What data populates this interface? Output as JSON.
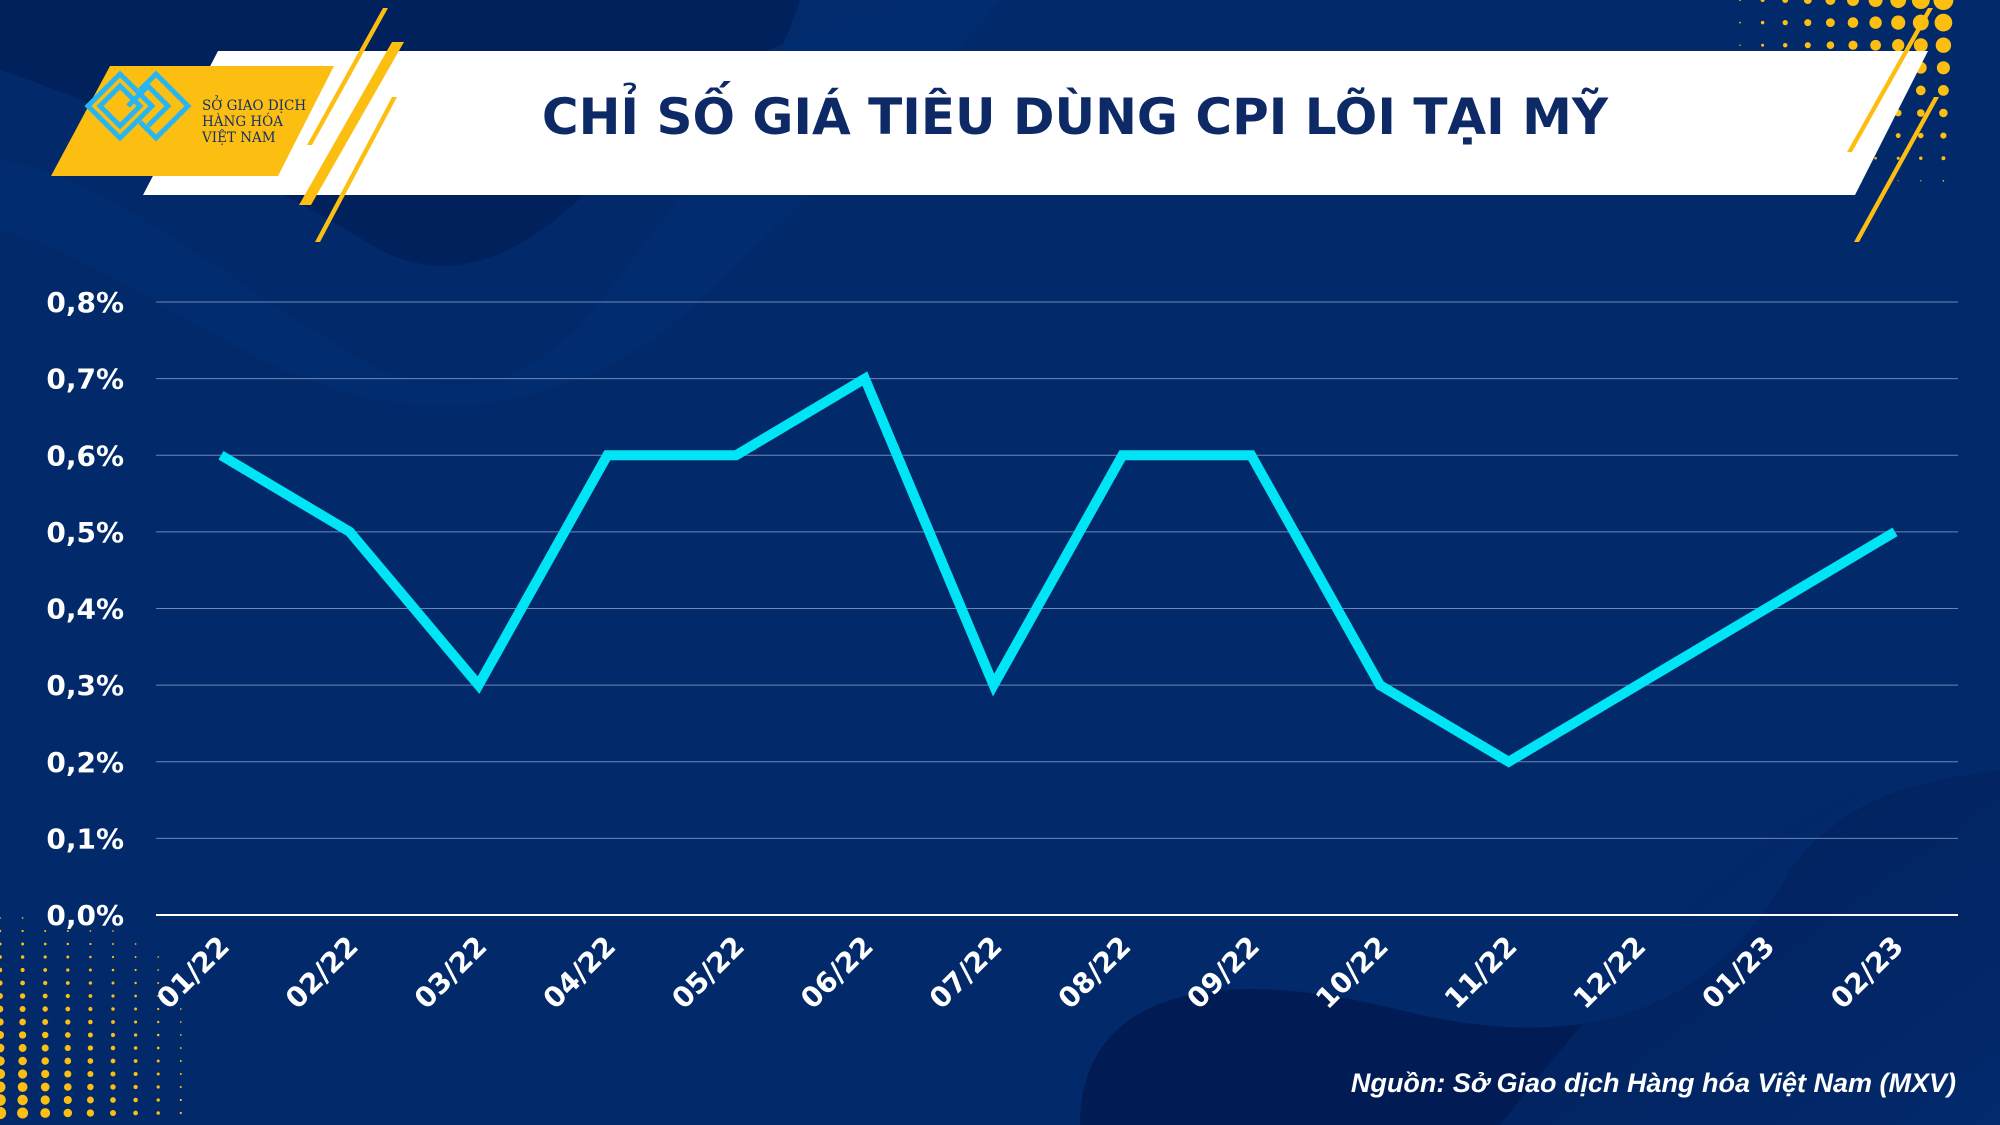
{
  "header": {
    "title": "CHỈ SỐ GIÁ TIÊU DÙNG CPI LÕI TẠI MỸ",
    "logo_text": [
      "SỞ GIAO DỊCH",
      "HÀNG HÓA",
      "VIỆT NAM"
    ]
  },
  "footer": {
    "source": "Nguồn: Sở Giao dịch Hàng hóa Việt Nam (MXV)"
  },
  "colors": {
    "background": "#022a6b",
    "line": "#00e5f5",
    "accent": "#fdbe12",
    "banner": "#ffffff",
    "title": "#0d2a66"
  },
  "chart_data": {
    "type": "line",
    "title": "CHỈ SỐ GIÁ TIÊU DÙNG CPI LÕI TẠI MỸ",
    "xlabel": "",
    "ylabel": "",
    "categories": [
      "01/22",
      "02/22",
      "03/22",
      "04/22",
      "05/22",
      "06/22",
      "07/22",
      "08/22",
      "09/22",
      "10/22",
      "11/22",
      "12/22",
      "01/23",
      "02/23"
    ],
    "series": [
      {
        "values": [
          0.6,
          0.5,
          0.3,
          0.6,
          0.6,
          0.7,
          0.3,
          0.6,
          0.6,
          0.3,
          0.2,
          0.3,
          0.4,
          0.5
        ]
      }
    ],
    "y_ticks": [
      "0,0%",
      "0,1%",
      "0,2%",
      "0,3%",
      "0,4%",
      "0,5%",
      "0,6%",
      "0,7%",
      "0,8%"
    ],
    "ylim": [
      0,
      0.8
    ],
    "grid": true,
    "legend": "none"
  }
}
